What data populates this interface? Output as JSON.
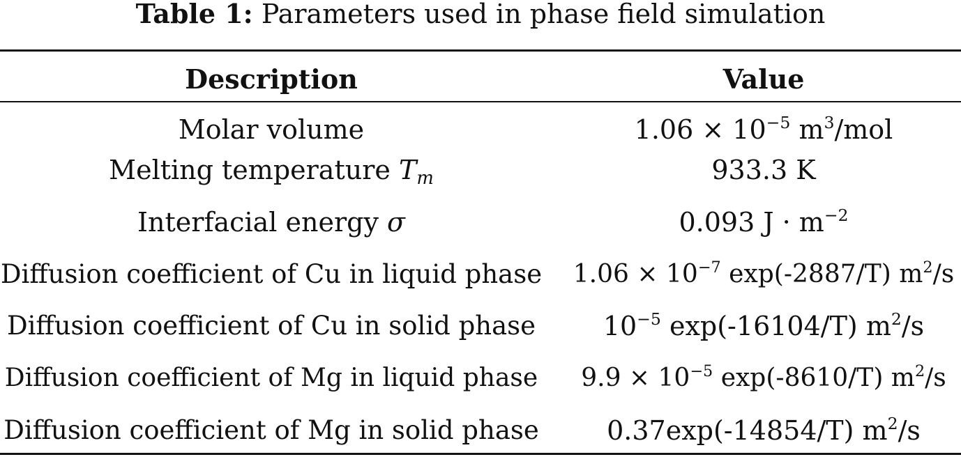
{
  "caption": {
    "label": "Table 1:",
    "text": "Parameters used in phase field simulation"
  },
  "table": {
    "headers": {
      "description": "Description",
      "value": "Value"
    },
    "rows": [
      {
        "description": "Molar volume",
        "value": {
          "mant": "1.06 × 10",
          "exp": "−5",
          "unit": "m",
          "unit_exp": "3",
          "tail": "/mol"
        }
      },
      {
        "description": "Melting temperature",
        "symbol": "T",
        "symbol_sub": "m",
        "value": {
          "text": "933.3 K"
        }
      },
      {
        "description": "Interfacial energy",
        "symbol": "σ",
        "value": {
          "text": "0.093 J · m",
          "exp": "−2"
        }
      },
      {
        "description": "Diffusion coefficient of Cu in liquid phase",
        "value": {
          "mant": "1.06 × 10",
          "exp": "−7",
          "expr": "exp(-2887/T) m",
          "unit_exp": "2",
          "tail": "/s"
        }
      },
      {
        "description": "Diffusion coefficient of Cu in solid phase",
        "value": {
          "mant": "10",
          "exp": "−5",
          "expr": "exp(-16104/T) m",
          "unit_exp": "2",
          "tail": "/s"
        }
      },
      {
        "description": "Diffusion coefficient of Mg in liquid phase",
        "value": {
          "mant": "9.9 × 10",
          "exp": "−5",
          "expr": "exp(-8610/T) m",
          "unit_exp": "2",
          "tail": "/s"
        }
      },
      {
        "description": "Diffusion coefficient of Mg in solid phase",
        "value": {
          "expr": "0.37exp(-14854/T) m",
          "unit_exp": "2",
          "tail": "/s"
        }
      }
    ]
  }
}
